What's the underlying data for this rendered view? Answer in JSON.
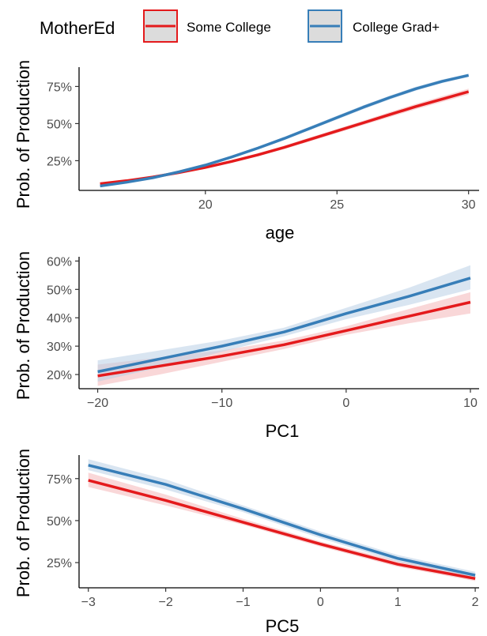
{
  "legend": {
    "title": "MotherEd",
    "items": [
      {
        "label": "Some College",
        "color": "#e41a1c"
      },
      {
        "label": "College Grad+",
        "color": "#377eb8"
      }
    ],
    "placement": "top"
  },
  "colors": {
    "some_college": "#e41a1c",
    "college_grad": "#377eb8",
    "some_college_ribbon": "#f4b6b8",
    "college_grad_ribbon": "#b9cfe6"
  },
  "chart_data": [
    {
      "type": "line",
      "xlabel": "age",
      "ylabel": "Prob. of Production",
      "xlim": [
        15.2,
        30.4
      ],
      "ylim": [
        0.05,
        0.88
      ],
      "xticks": [
        {
          "v": 20,
          "label": "20"
        },
        {
          "v": 25,
          "label": "25"
        },
        {
          "v": 30,
          "label": "30"
        }
      ],
      "yticks": [
        {
          "v": 0.25,
          "label": "25%"
        },
        {
          "v": 0.5,
          "label": "50%"
        },
        {
          "v": 0.75,
          "label": "75%"
        }
      ],
      "x": [
        16,
        17,
        18,
        19,
        20,
        21,
        22,
        23,
        24,
        25,
        26,
        27,
        28,
        29,
        30
      ],
      "series": [
        {
          "name": "Some College",
          "key": "some_college",
          "values": [
            0.095,
            0.115,
            0.14,
            0.17,
            0.205,
            0.245,
            0.29,
            0.34,
            0.395,
            0.45,
            0.505,
            0.56,
            0.615,
            0.665,
            0.715
          ],
          "lower": [
            0.09,
            0.11,
            0.135,
            0.165,
            0.198,
            0.236,
            0.28,
            0.328,
            0.382,
            0.436,
            0.49,
            0.543,
            0.597,
            0.646,
            0.695
          ],
          "upper": [
            0.1,
            0.12,
            0.145,
            0.175,
            0.212,
            0.254,
            0.3,
            0.352,
            0.408,
            0.464,
            0.52,
            0.577,
            0.633,
            0.684,
            0.735
          ]
        },
        {
          "name": "College Grad+",
          "key": "college_grad",
          "values": [
            0.08,
            0.105,
            0.135,
            0.175,
            0.22,
            0.275,
            0.335,
            0.4,
            0.47,
            0.54,
            0.61,
            0.675,
            0.735,
            0.785,
            0.825
          ],
          "lower": [
            0.075,
            0.1,
            0.13,
            0.168,
            0.212,
            0.266,
            0.325,
            0.389,
            0.458,
            0.527,
            0.597,
            0.662,
            0.722,
            0.773,
            0.814
          ],
          "upper": [
            0.085,
            0.11,
            0.14,
            0.182,
            0.228,
            0.284,
            0.345,
            0.411,
            0.482,
            0.553,
            0.623,
            0.688,
            0.748,
            0.797,
            0.836
          ]
        }
      ]
    },
    {
      "type": "line",
      "xlabel": "PC1",
      "ylabel": "Prob. of Production",
      "xlim": [
        -21.5,
        10.7
      ],
      "ylim": [
        0.15,
        0.615
      ],
      "xticks": [
        {
          "v": -20,
          "label": "−20"
        },
        {
          "v": -10,
          "label": "−10"
        },
        {
          "v": 0,
          "label": "0"
        },
        {
          "v": 10,
          "label": "10"
        }
      ],
      "yticks": [
        {
          "v": 0.2,
          "label": "20%"
        },
        {
          "v": 0.3,
          "label": "30%"
        },
        {
          "v": 0.4,
          "label": "40%"
        },
        {
          "v": 0.5,
          "label": "50%"
        },
        {
          "v": 0.6,
          "label": "60%"
        }
      ],
      "x": [
        -20,
        -15,
        -10,
        -5,
        0,
        5,
        10
      ],
      "series": [
        {
          "name": "Some College",
          "key": "some_college",
          "values": [
            0.195,
            0.23,
            0.265,
            0.305,
            0.355,
            0.405,
            0.455
          ],
          "lower": [
            0.16,
            0.2,
            0.245,
            0.29,
            0.34,
            0.38,
            0.415
          ],
          "upper": [
            0.235,
            0.26,
            0.285,
            0.32,
            0.37,
            0.43,
            0.49
          ]
        },
        {
          "name": "College Grad+",
          "key": "college_grad",
          "values": [
            0.21,
            0.255,
            0.3,
            0.35,
            0.415,
            0.475,
            0.54
          ],
          "lower": [
            0.175,
            0.225,
            0.28,
            0.335,
            0.395,
            0.445,
            0.5
          ],
          "upper": [
            0.25,
            0.285,
            0.32,
            0.365,
            0.435,
            0.505,
            0.585
          ]
        }
      ]
    },
    {
      "type": "line",
      "xlabel": "PC5",
      "ylabel": "Prob. of Production",
      "xlim": [
        -3.12,
        2.05
      ],
      "ylim": [
        0.1,
        0.89
      ],
      "xticks": [
        {
          "v": -3,
          "label": "−3"
        },
        {
          "v": -2,
          "label": "−2"
        },
        {
          "v": -1,
          "label": "−1"
        },
        {
          "v": 0,
          "label": "0"
        },
        {
          "v": 1,
          "label": "1"
        },
        {
          "v": 2,
          "label": "2"
        }
      ],
      "yticks": [
        {
          "v": 0.25,
          "label": "25%"
        },
        {
          "v": 0.5,
          "label": "50%"
        },
        {
          "v": 0.75,
          "label": "75%"
        }
      ],
      "x": [
        -3,
        -2,
        -1,
        0,
        1,
        2
      ],
      "series": [
        {
          "name": "Some College",
          "key": "some_college",
          "values": [
            0.74,
            0.62,
            0.49,
            0.36,
            0.24,
            0.155
          ],
          "lower": [
            0.7,
            0.59,
            0.475,
            0.345,
            0.225,
            0.14
          ],
          "upper": [
            0.785,
            0.655,
            0.51,
            0.375,
            0.26,
            0.175
          ]
        },
        {
          "name": "College Grad+",
          "key": "college_grad",
          "values": [
            0.83,
            0.715,
            0.57,
            0.415,
            0.275,
            0.175
          ],
          "lower": [
            0.8,
            0.685,
            0.55,
            0.395,
            0.255,
            0.155
          ],
          "upper": [
            0.865,
            0.745,
            0.59,
            0.435,
            0.295,
            0.195
          ]
        }
      ]
    }
  ]
}
